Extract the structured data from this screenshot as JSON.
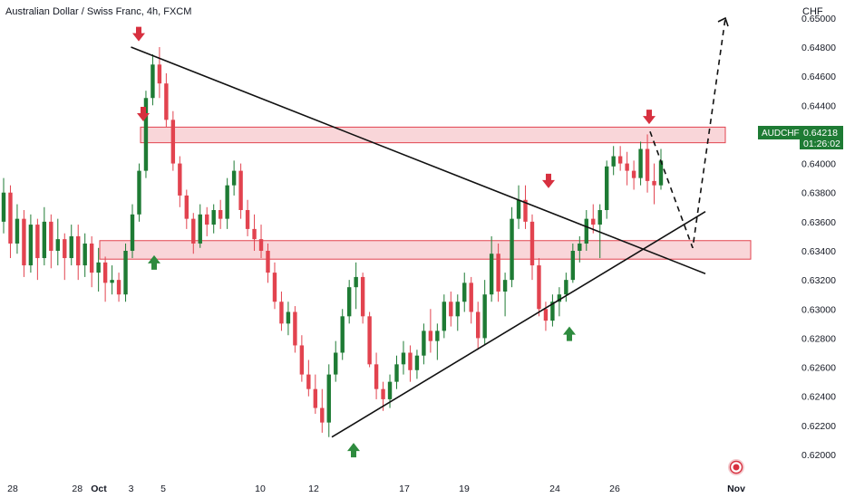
{
  "header": {
    "title": "Australian Dollar / Swiss Franc, 4h, FXCM",
    "currency": "CHF"
  },
  "price_tag": {
    "symbol": "AUDCHF",
    "price": "0.64218",
    "countdown": "01:26:02"
  },
  "colors": {
    "up": "#1e7b34",
    "down": "#e2434f",
    "zone_fill": "#f8cfd2",
    "zone_stroke": "#e2434f",
    "line": "#111111",
    "tag_bg": "#1e7b34",
    "arrow_up": "#2e8b3e",
    "arrow_down": "#d7303f"
  },
  "chart_data": {
    "type": "candlestick",
    "title": "Australian Dollar / Swiss Franc, 4h, FXCM",
    "y_unit": "CHF",
    "ylim": [
      0.619,
      0.6505
    ],
    "y_ticks": [
      "0.65000",
      "0.64800",
      "0.64600",
      "0.64400",
      "0.64200",
      "0.64000",
      "0.63800",
      "0.63600",
      "0.63400",
      "0.63200",
      "0.63000",
      "0.62800",
      "0.62600",
      "0.62400",
      "0.62200",
      "0.62000"
    ],
    "x_ticks": [
      "28",
      "Oct",
      "5",
      "10",
      "12",
      "17",
      "19",
      "24",
      "26",
      "28",
      "Nov",
      "3"
    ],
    "grid": false,
    "last_price": 0.64218,
    "zones": [
      {
        "from": 0.6418,
        "to": 0.6425
      },
      {
        "from": 0.6338,
        "to": 0.6347
      }
    ],
    "trendlines": [
      {
        "from": {
          "x": "Oct 3",
          "y": 0.648
        },
        "to": {
          "x": "Oct 30",
          "y": 0.6333
        }
      },
      {
        "from": {
          "x": "Oct 13",
          "y": 0.6212
        },
        "to": {
          "x": "Oct 30",
          "y": 0.6352
        }
      }
    ],
    "projection": [
      {
        "x": "Oct 27",
        "y": 0.6422
      },
      {
        "x": "Oct 28",
        "y": 0.6342
      },
      {
        "x": "Oct 30",
        "y": 0.6499
      }
    ],
    "markers": [
      {
        "type": "down",
        "x": "Oct 3",
        "y": 0.6484
      },
      {
        "type": "down",
        "x": "Oct 3",
        "y": 0.6429
      },
      {
        "type": "up",
        "x": "Oct 4",
        "y": 0.6337
      },
      {
        "type": "up",
        "x": "Oct 13",
        "y": 0.6208
      },
      {
        "type": "down",
        "x": "Oct 24",
        "y": 0.6383
      },
      {
        "type": "up",
        "x": "Oct 25",
        "y": 0.6288
      },
      {
        "type": "down",
        "x": "Oct 27",
        "y": 0.6427
      }
    ],
    "candles": [
      [
        0.636,
        0.639,
        0.6352,
        0.638
      ],
      [
        0.638,
        0.6385,
        0.6335,
        0.6345
      ],
      [
        0.6345,
        0.6372,
        0.6338,
        0.6362
      ],
      [
        0.6362,
        0.6368,
        0.6322,
        0.633
      ],
      [
        0.633,
        0.6365,
        0.6325,
        0.6358
      ],
      [
        0.6358,
        0.6362,
        0.632,
        0.6335
      ],
      [
        0.6335,
        0.637,
        0.633,
        0.636
      ],
      [
        0.636,
        0.6365,
        0.6328,
        0.634
      ],
      [
        0.634,
        0.6362,
        0.633,
        0.6348
      ],
      [
        0.6348,
        0.6352,
        0.632,
        0.6335
      ],
      [
        0.6335,
        0.6358,
        0.633,
        0.635
      ],
      [
        0.635,
        0.6358,
        0.632,
        0.633
      ],
      [
        0.633,
        0.6352,
        0.6322,
        0.6345
      ],
      [
        0.6345,
        0.635,
        0.6315,
        0.6325
      ],
      [
        0.6325,
        0.6342,
        0.6312,
        0.6332
      ],
      [
        0.6332,
        0.6336,
        0.6305,
        0.6318
      ],
      [
        0.6318,
        0.633,
        0.631,
        0.632
      ],
      [
        0.632,
        0.6325,
        0.6305,
        0.631
      ],
      [
        0.631,
        0.6345,
        0.6305,
        0.634
      ],
      [
        0.634,
        0.6372,
        0.6335,
        0.6365
      ],
      [
        0.6365,
        0.64,
        0.636,
        0.6395
      ],
      [
        0.6395,
        0.645,
        0.639,
        0.6445
      ],
      [
        0.6445,
        0.6475,
        0.644,
        0.6468
      ],
      [
        0.6468,
        0.648,
        0.6445,
        0.6455
      ],
      [
        0.6455,
        0.6462,
        0.6425,
        0.643
      ],
      [
        0.643,
        0.6436,
        0.6395,
        0.64
      ],
      [
        0.64,
        0.6405,
        0.637,
        0.6378
      ],
      [
        0.6378,
        0.6382,
        0.6355,
        0.6362
      ],
      [
        0.6362,
        0.6366,
        0.6338,
        0.6345
      ],
      [
        0.6345,
        0.6372,
        0.6342,
        0.6365
      ],
      [
        0.6365,
        0.637,
        0.635,
        0.6358
      ],
      [
        0.6358,
        0.6372,
        0.6352,
        0.6368
      ],
      [
        0.6368,
        0.6375,
        0.6355,
        0.6362
      ],
      [
        0.6362,
        0.639,
        0.6355,
        0.6385
      ],
      [
        0.6385,
        0.6402,
        0.6378,
        0.6395
      ],
      [
        0.6395,
        0.64,
        0.6362,
        0.6368
      ],
      [
        0.6368,
        0.6375,
        0.635,
        0.6355
      ],
      [
        0.6355,
        0.6365,
        0.634,
        0.6348
      ],
      [
        0.6348,
        0.6358,
        0.6335,
        0.634
      ],
      [
        0.634,
        0.6345,
        0.6318,
        0.6325
      ],
      [
        0.6325,
        0.6332,
        0.63,
        0.6305
      ],
      [
        0.6305,
        0.6312,
        0.6285,
        0.629
      ],
      [
        0.629,
        0.6305,
        0.6282,
        0.6298
      ],
      [
        0.6298,
        0.6302,
        0.627,
        0.6275
      ],
      [
        0.6275,
        0.6282,
        0.625,
        0.6255
      ],
      [
        0.6255,
        0.6265,
        0.624,
        0.6245
      ],
      [
        0.6245,
        0.6255,
        0.6228,
        0.6232
      ],
      [
        0.6232,
        0.6245,
        0.6215,
        0.6222
      ],
      [
        0.6222,
        0.6262,
        0.6212,
        0.6255
      ],
      [
        0.6255,
        0.6278,
        0.625,
        0.627
      ],
      [
        0.627,
        0.63,
        0.6265,
        0.6295
      ],
      [
        0.6295,
        0.632,
        0.629,
        0.6315
      ],
      [
        0.6315,
        0.6332,
        0.63,
        0.6322
      ],
      [
        0.6322,
        0.6325,
        0.629,
        0.6295
      ],
      [
        0.6295,
        0.6298,
        0.626,
        0.6262
      ],
      [
        0.6262,
        0.627,
        0.6238,
        0.6245
      ],
      [
        0.6245,
        0.625,
        0.623,
        0.6238
      ],
      [
        0.6238,
        0.6255,
        0.6232,
        0.625
      ],
      [
        0.625,
        0.6268,
        0.6245,
        0.6262
      ],
      [
        0.6262,
        0.6278,
        0.6255,
        0.627
      ],
      [
        0.627,
        0.6275,
        0.625,
        0.6258
      ],
      [
        0.6258,
        0.6272,
        0.6252,
        0.6268
      ],
      [
        0.6268,
        0.629,
        0.6262,
        0.6285
      ],
      [
        0.6285,
        0.63,
        0.627,
        0.6278
      ],
      [
        0.6278,
        0.629,
        0.6265,
        0.6285
      ],
      [
        0.6285,
        0.631,
        0.628,
        0.6305
      ],
      [
        0.6305,
        0.6312,
        0.6288,
        0.6295
      ],
      [
        0.6295,
        0.631,
        0.6285,
        0.6305
      ],
      [
        0.6305,
        0.6325,
        0.6298,
        0.6318
      ],
      [
        0.6318,
        0.6322,
        0.629,
        0.6298
      ],
      [
        0.6298,
        0.6305,
        0.6272,
        0.628
      ],
      [
        0.628,
        0.632,
        0.6275,
        0.631
      ],
      [
        0.631,
        0.635,
        0.6305,
        0.6338
      ],
      [
        0.6338,
        0.6345,
        0.6305,
        0.6312
      ],
      [
        0.6312,
        0.6325,
        0.6295,
        0.632
      ],
      [
        0.632,
        0.637,
        0.6315,
        0.6362
      ],
      [
        0.6362,
        0.6385,
        0.6355,
        0.6375
      ],
      [
        0.6375,
        0.6385,
        0.6355,
        0.636
      ],
      [
        0.636,
        0.6365,
        0.632,
        0.633
      ],
      [
        0.633,
        0.6335,
        0.6295,
        0.63
      ],
      [
        0.63,
        0.6305,
        0.6285,
        0.6292
      ],
      [
        0.6292,
        0.631,
        0.6288,
        0.6305
      ],
      [
        0.6305,
        0.6315,
        0.6295,
        0.631
      ],
      [
        0.631,
        0.6325,
        0.6305,
        0.632
      ],
      [
        0.632,
        0.6345,
        0.6318,
        0.634
      ],
      [
        0.634,
        0.635,
        0.6332,
        0.6345
      ],
      [
        0.6345,
        0.6368,
        0.634,
        0.6362
      ],
      [
        0.6362,
        0.6372,
        0.6352,
        0.6358
      ],
      [
        0.6358,
        0.6372,
        0.6335,
        0.6368
      ],
      [
        0.6368,
        0.6402,
        0.6362,
        0.6398
      ],
      [
        0.6398,
        0.6412,
        0.6392,
        0.6405
      ],
      [
        0.6405,
        0.6412,
        0.6395,
        0.64
      ],
      [
        0.64,
        0.6408,
        0.6385,
        0.6395
      ],
      [
        0.6395,
        0.6402,
        0.6382,
        0.639
      ],
      [
        0.639,
        0.6415,
        0.6385,
        0.641
      ],
      [
        0.641,
        0.642,
        0.638,
        0.6388
      ],
      [
        0.6388,
        0.64,
        0.6372,
        0.6385
      ],
      [
        0.6385,
        0.641,
        0.6382,
        0.6402
      ]
    ]
  }
}
